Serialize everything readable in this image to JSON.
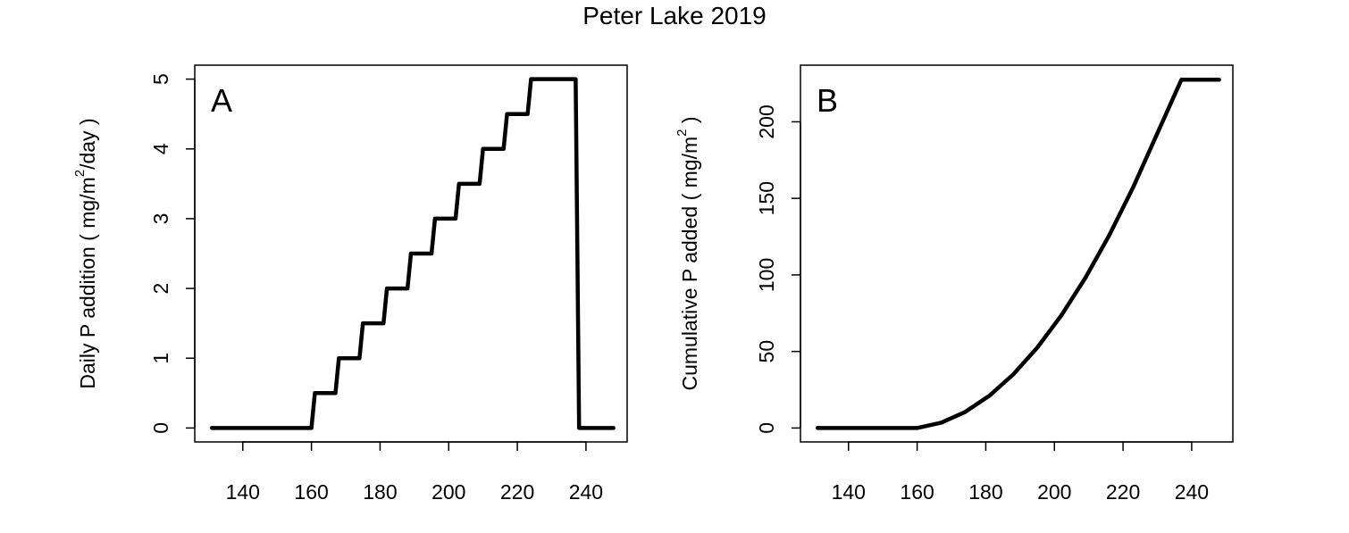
{
  "figure": {
    "title": "Peter Lake 2019"
  },
  "chart_data": [
    {
      "type": "line",
      "panel_label": "A",
      "title": "",
      "xlabel": "",
      "ylabel_parts": [
        "Daily P addition ( mg/m",
        "2",
        "/day )"
      ],
      "xlim": [
        126,
        252
      ],
      "ylim": [
        -0.2,
        5.2
      ],
      "xticks": [
        140,
        160,
        180,
        200,
        220,
        240
      ],
      "xtick_labels": [
        "140",
        "160",
        "180",
        "200",
        "220",
        "240"
      ],
      "yticks": [
        0,
        1,
        2,
        3,
        4,
        5
      ],
      "ytick_labels": [
        "0",
        "1",
        "2",
        "3",
        "4",
        "5"
      ],
      "grid": false,
      "series": [
        {
          "color": "#000000",
          "x": [
            131,
            160,
            161,
            167,
            168,
            174,
            175,
            181,
            182,
            188,
            189,
            195,
            196,
            202,
            203,
            209,
            210,
            216,
            217,
            223,
            224,
            237,
            238,
            248
          ],
          "y": [
            0,
            0,
            0.5,
            0.5,
            1,
            1,
            1.5,
            1.5,
            2,
            2,
            2.5,
            2.5,
            3,
            3,
            3.5,
            3.5,
            4,
            4,
            4.5,
            4.5,
            5,
            5,
            0,
            0
          ]
        }
      ]
    },
    {
      "type": "line",
      "panel_label": "B",
      "title": "",
      "xlabel": "",
      "ylabel_parts": [
        "Cumulative P added ( mg/m",
        "2",
        " )"
      ],
      "xlim": [
        126,
        252
      ],
      "ylim": [
        -9.1,
        237
      ],
      "xticks": [
        140,
        160,
        180,
        200,
        220,
        240
      ],
      "xtick_labels": [
        "140",
        "160",
        "180",
        "200",
        "220",
        "240"
      ],
      "yticks": [
        0,
        50,
        100,
        150,
        200
      ],
      "ytick_labels": [
        "0",
        "50",
        "100",
        "150",
        "200"
      ],
      "grid": false,
      "series": [
        {
          "color": "#000000",
          "x": [
            131,
            160,
            167,
            174,
            181,
            188,
            195,
            202,
            209,
            216,
            223,
            230,
            237,
            248
          ],
          "y": [
            0,
            0,
            3.5,
            10.5,
            21,
            35,
            52.5,
            73.5,
            98,
            126,
            157.5,
            192.5,
            227.5,
            227.5
          ]
        }
      ]
    }
  ]
}
